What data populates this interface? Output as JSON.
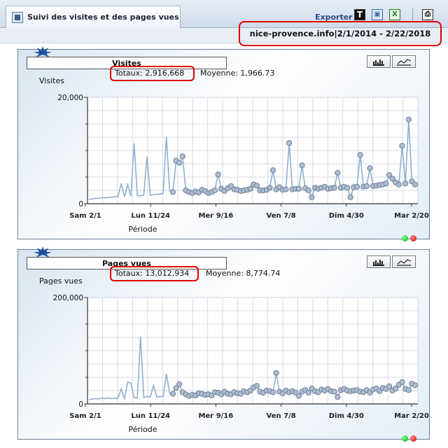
{
  "header": {
    "tab_title": "Suivi des visites et des pages vues",
    "export_label": "Exporter",
    "export_icons": [
      "text-export-icon",
      "image-export-icon",
      "excel-export-icon",
      "print-icon"
    ],
    "site": "nice-provence.info",
    "separator": "|",
    "date_range": "2/1/2014 - 2/22/2018"
  },
  "panels": [
    {
      "title": "Visites",
      "totals": "Totaux: 2,916,668",
      "average": "Moyenne: 1,966.73",
      "y_axis_label": "Visites",
      "x_axis_label": "Période"
    },
    {
      "title": "Pages vues",
      "totals": "Totaux: 13,012,934",
      "average": "Moyenne: 8,774.74",
      "y_axis_label": "Pages vues",
      "x_axis_label": "Période"
    }
  ],
  "chart_data": [
    {
      "type": "line",
      "title": "Visites",
      "ylabel": "Visites",
      "xlabel": "Période",
      "y_ticks": [
        "20,000",
        "0"
      ],
      "ylim": [
        0,
        20000
      ],
      "x_ticks": [
        "Sam 2/1",
        "Lun 11/24",
        "Mer 9/16",
        "Ven 7/8",
        "Dim 4/30",
        "Mar 2/20"
      ],
      "grid": true,
      "color": "#8fb0d0",
      "series": [
        {
          "values": [
            800,
            900,
            1000,
            1000,
            1100,
            1100,
            1200,
            1200,
            1300,
            1300,
            3800,
            1300,
            3600,
            1400,
            11400,
            1500,
            1500,
            1600,
            8900,
            1600,
            1700,
            1800,
            1800,
            1900,
            12600,
            2400,
            2200,
            8100,
            7700,
            8900,
            2500,
            2200,
            2000,
            2300,
            2100,
            2600,
            2400,
            2000,
            2200,
            2500,
            5500,
            2800,
            2400,
            2900,
            3300,
            2700,
            2600,
            2400,
            2500,
            2600,
            2800,
            3600,
            3400,
            2500,
            2500,
            2600,
            3000,
            6300,
            2700,
            3100,
            2600,
            2700,
            11400,
            2700,
            2800,
            2800,
            7200,
            2900,
            2500,
            1200,
            3000,
            2800,
            3000,
            3200,
            2800,
            2900,
            3000,
            5800,
            3000,
            3200,
            3000,
            1200,
            3100,
            3200,
            9200,
            3200,
            3300,
            6700,
            3300,
            3400,
            3500,
            3600,
            3800,
            5400,
            4700,
            4000,
            3600,
            10900,
            3800,
            15800,
            4200,
            3600
          ]
        }
      ]
    },
    {
      "type": "line",
      "title": "Pages vues",
      "ylabel": "Pages vues",
      "xlabel": "Période",
      "y_ticks": [
        "200,000",
        "0"
      ],
      "ylim": [
        0,
        200000
      ],
      "x_ticks": [
        "Sam 2/1",
        "Lun 11/24",
        "Mer 9/16",
        "Ven 7/8",
        "Dim 4/30",
        "Mar 2/20"
      ],
      "grid": true,
      "color": "#8fb0d0",
      "series": [
        {
          "values": [
            8000,
            9000,
            10000,
            9000,
            11000,
            10000,
            11000,
            10000,
            11000,
            10000,
            28000,
            10000,
            41000,
            39000,
            12000,
            11000,
            127000,
            12000,
            14000,
            13000,
            35000,
            13000,
            14000,
            14000,
            57000,
            20000,
            19000,
            30000,
            37000,
            22000,
            18000,
            15000,
            17000,
            16000,
            20000,
            19000,
            17000,
            18000,
            16000,
            22000,
            21000,
            18000,
            23000,
            19000,
            18000,
            22000,
            20000,
            19000,
            24000,
            22000,
            25000,
            31000,
            34000,
            23000,
            21000,
            25000,
            24000,
            22000,
            58000,
            23000,
            20000,
            25000,
            22000,
            24000,
            21000,
            15000,
            23000,
            26000,
            21000,
            29000,
            24000,
            22000,
            27000,
            25000,
            28000,
            24000,
            23000,
            13000,
            26000,
            28000,
            25000,
            24000,
            25000,
            26000,
            23000,
            22000,
            26000,
            21000,
            27000,
            29000,
            24000,
            30000,
            28000,
            33000,
            25000,
            29000,
            36000,
            41000,
            28000,
            26000,
            38000,
            35000
          ]
        }
      ]
    }
  ]
}
